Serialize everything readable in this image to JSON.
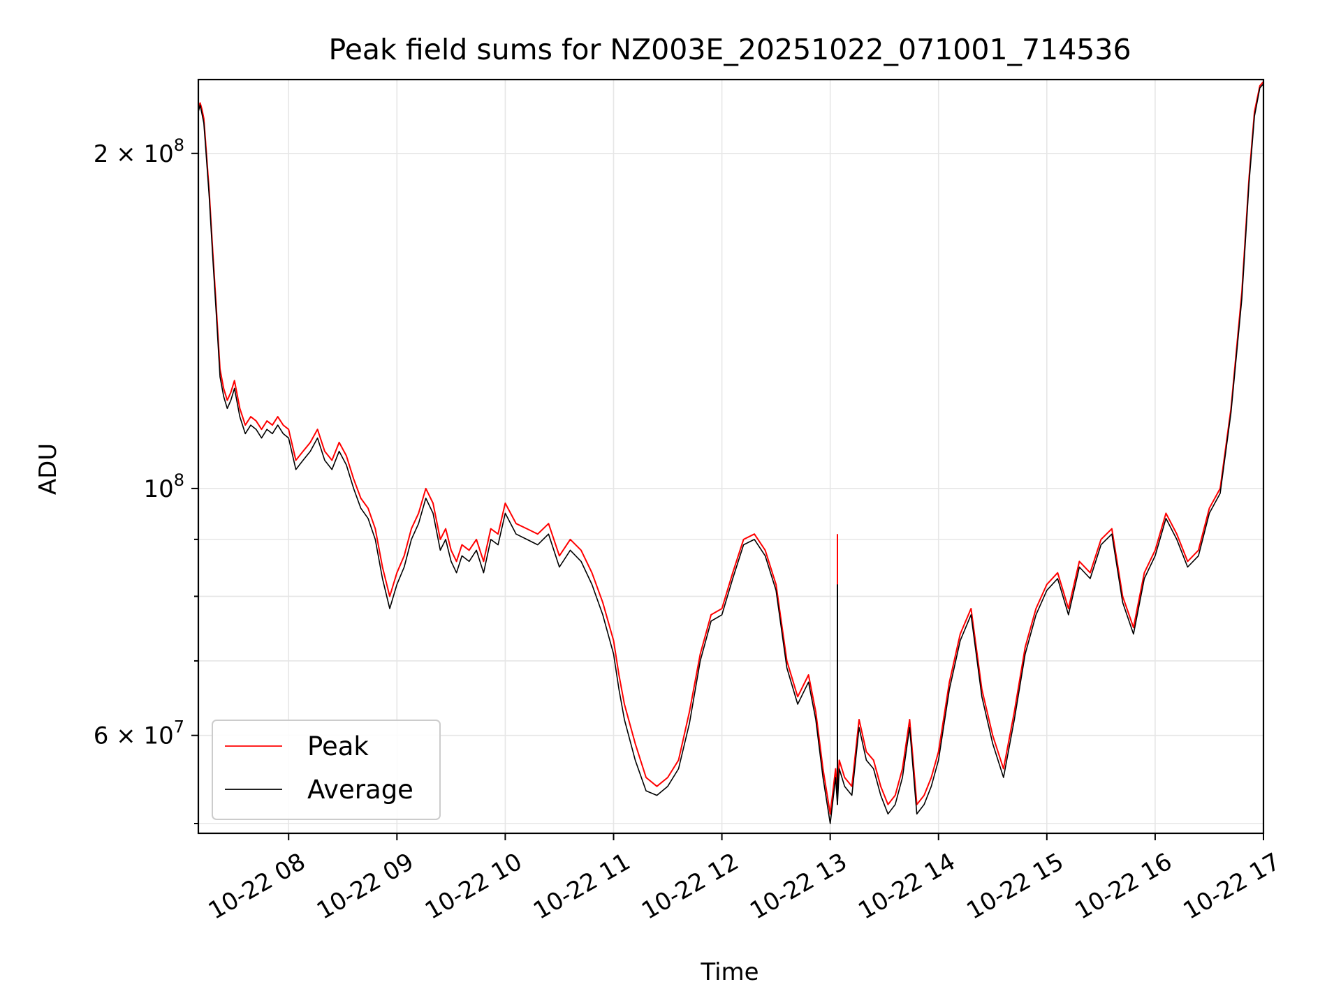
{
  "chart_data": {
    "type": "line",
    "title": "Peak field sums for NZ003E_20251022_071001_714536",
    "xlabel": "Time",
    "ylabel": "ADU",
    "yscale": "log",
    "grid": true,
    "legend_position": "lower-left",
    "xlim": [
      "2025-10-22 07:10",
      "2025-10-22 17:00"
    ],
    "ylim": [
      49000000,
      233000000
    ],
    "x_ticks": [
      {
        "label": "10-22 08",
        "t": "2025-10-22 08:00"
      },
      {
        "label": "10-22 09",
        "t": "2025-10-22 09:00"
      },
      {
        "label": "10-22 10",
        "t": "2025-10-22 10:00"
      },
      {
        "label": "10-22 11",
        "t": "2025-10-22 11:00"
      },
      {
        "label": "10-22 12",
        "t": "2025-10-22 12:00"
      },
      {
        "label": "10-22 13",
        "t": "2025-10-22 13:00"
      },
      {
        "label": "10-22 14",
        "t": "2025-10-22 14:00"
      },
      {
        "label": "10-22 15",
        "t": "2025-10-22 15:00"
      },
      {
        "label": "10-22 16",
        "t": "2025-10-22 16:00"
      },
      {
        "label": "10-22 17",
        "t": "2025-10-22 17:00"
      }
    ],
    "y_major_ticks": [
      {
        "label_base": "6",
        "label_exp": "7",
        "value": 60000000
      },
      {
        "label_base": "",
        "label_exp": "8",
        "value": 100000000
      },
      {
        "label_base": "2",
        "label_exp": "8",
        "value": 200000000
      }
    ],
    "y_minor_ticks": [
      50000000,
      70000000,
      80000000,
      90000000
    ],
    "series": [
      {
        "name": "Peak",
        "color": "#ff0000",
        "x": [
          "07:10",
          "07:11",
          "07:12",
          "07:13",
          "07:14",
          "07:16",
          "07:18",
          "07:20",
          "07:22",
          "07:24",
          "07:26",
          "07:28",
          "07:30",
          "07:33",
          "07:36",
          "07:39",
          "07:42",
          "07:45",
          "07:48",
          "07:51",
          "07:54",
          "07:57",
          "08:00",
          "08:04",
          "08:08",
          "08:12",
          "08:16",
          "08:20",
          "08:24",
          "08:28",
          "08:32",
          "08:36",
          "08:40",
          "08:44",
          "08:48",
          "08:52",
          "08:56",
          "09:00",
          "09:04",
          "09:08",
          "09:12",
          "09:16",
          "09:20",
          "09:24",
          "09:27",
          "09:30",
          "09:33",
          "09:36",
          "09:40",
          "09:44",
          "09:48",
          "09:52",
          "09:56",
          "10:00",
          "10:06",
          "10:12",
          "10:18",
          "10:24",
          "10:30",
          "10:36",
          "10:42",
          "10:48",
          "10:54",
          "11:00",
          "11:03",
          "11:06",
          "11:12",
          "11:18",
          "11:24",
          "11:30",
          "11:36",
          "11:42",
          "11:48",
          "11:54",
          "12:00",
          "12:06",
          "12:12",
          "12:18",
          "12:24",
          "12:30",
          "12:36",
          "12:42",
          "12:48",
          "12:52",
          "12:56",
          "13:00",
          "13:03",
          "13:04",
          "13:05",
          "13:08",
          "13:12",
          "13:16",
          "13:20",
          "13:24",
          "13:28",
          "13:32",
          "13:36",
          "13:40",
          "13:44",
          "13:48",
          "13:52",
          "13:56",
          "14:00",
          "14:06",
          "14:12",
          "14:18",
          "14:24",
          "14:30",
          "14:36",
          "14:42",
          "14:48",
          "14:54",
          "15:00",
          "15:06",
          "15:12",
          "15:18",
          "15:24",
          "15:30",
          "15:36",
          "15:42",
          "15:48",
          "15:54",
          "16:00",
          "16:06",
          "16:12",
          "16:18",
          "16:24",
          "16:30",
          "16:36",
          "16:42",
          "16:48",
          "16:52",
          "16:55",
          "16:58",
          "17:00"
        ],
        "values": [
          220000000,
          222000000,
          219000000,
          215000000,
          205000000,
          185000000,
          163000000,
          145000000,
          128000000,
          123000000,
          120000000,
          122000000,
          125000000,
          118000000,
          114000000,
          116000000,
          115000000,
          113000000,
          115000000,
          114000000,
          116000000,
          114000000,
          113000000,
          106000000,
          108000000,
          110000000,
          113000000,
          108000000,
          106000000,
          110000000,
          107000000,
          102000000,
          98000000,
          96000000,
          92000000,
          85000000,
          80000000,
          84000000,
          87000000,
          92000000,
          95000000,
          100000000,
          97000000,
          90000000,
          92000000,
          88000000,
          86000000,
          89000000,
          88000000,
          90000000,
          86000000,
          92000000,
          91000000,
          97000000,
          93000000,
          92000000,
          91000000,
          93000000,
          87000000,
          90000000,
          88000000,
          84000000,
          79000000,
          73000000,
          68000000,
          64000000,
          59000000,
          55000000,
          54000000,
          55000000,
          57000000,
          63000000,
          71000000,
          77000000,
          78000000,
          84000000,
          90000000,
          91000000,
          88000000,
          82000000,
          70000000,
          65000000,
          68000000,
          63000000,
          56000000,
          51000000,
          56000000,
          53000000,
          57000000,
          55000000,
          54000000,
          62000000,
          58000000,
          57000000,
          54000000,
          52000000,
          53000000,
          56000000,
          62000000,
          52000000,
          53000000,
          55000000,
          58000000,
          67000000,
          74000000,
          78000000,
          66000000,
          60000000,
          56000000,
          63000000,
          72000000,
          78000000,
          82000000,
          84000000,
          78000000,
          86000000,
          84000000,
          90000000,
          92000000,
          80000000,
          75000000,
          84000000,
          88000000,
          95000000,
          91000000,
          86000000,
          88000000,
          96000000,
          100000000,
          118000000,
          150000000,
          190000000,
          218000000,
          230000000,
          232000000
        ],
        "annotations": [
          {
            "x": "13:04",
            "value": 91000000
          }
        ]
      },
      {
        "name": "Average",
        "color": "#000000",
        "x": [
          "07:10",
          "07:11",
          "07:12",
          "07:13",
          "07:14",
          "07:16",
          "07:18",
          "07:20",
          "07:22",
          "07:24",
          "07:26",
          "07:28",
          "07:30",
          "07:33",
          "07:36",
          "07:39",
          "07:42",
          "07:45",
          "07:48",
          "07:51",
          "07:54",
          "07:57",
          "08:00",
          "08:04",
          "08:08",
          "08:12",
          "08:16",
          "08:20",
          "08:24",
          "08:28",
          "08:32",
          "08:36",
          "08:40",
          "08:44",
          "08:48",
          "08:52",
          "08:56",
          "09:00",
          "09:04",
          "09:08",
          "09:12",
          "09:16",
          "09:20",
          "09:24",
          "09:27",
          "09:30",
          "09:33",
          "09:36",
          "09:40",
          "09:44",
          "09:48",
          "09:52",
          "09:56",
          "10:00",
          "10:06",
          "10:12",
          "10:18",
          "10:24",
          "10:30",
          "10:36",
          "10:42",
          "10:48",
          "10:54",
          "11:00",
          "11:03",
          "11:06",
          "11:12",
          "11:18",
          "11:24",
          "11:30",
          "11:36",
          "11:42",
          "11:48",
          "11:54",
          "12:00",
          "12:06",
          "12:12",
          "12:18",
          "12:24",
          "12:30",
          "12:36",
          "12:42",
          "12:48",
          "12:52",
          "12:56",
          "13:00",
          "13:03",
          "13:04",
          "13:05",
          "13:08",
          "13:12",
          "13:16",
          "13:20",
          "13:24",
          "13:28",
          "13:32",
          "13:36",
          "13:40",
          "13:44",
          "13:48",
          "13:52",
          "13:56",
          "14:00",
          "14:06",
          "14:12",
          "14:18",
          "14:24",
          "14:30",
          "14:36",
          "14:42",
          "14:48",
          "14:54",
          "15:00",
          "15:06",
          "15:12",
          "15:18",
          "15:24",
          "15:30",
          "15:36",
          "15:42",
          "15:48",
          "15:54",
          "16:00",
          "16:06",
          "16:12",
          "16:18",
          "16:24",
          "16:30",
          "16:36",
          "16:42",
          "16:48",
          "16:52",
          "16:55",
          "16:58",
          "17:00"
        ],
        "values": [
          218000000,
          221000000,
          217000000,
          213000000,
          203000000,
          183000000,
          161000000,
          143000000,
          126000000,
          121000000,
          118000000,
          120000000,
          123000000,
          116000000,
          112000000,
          114000000,
          113000000,
          111000000,
          113000000,
          112000000,
          114000000,
          112000000,
          111000000,
          104000000,
          106000000,
          108000000,
          111000000,
          106000000,
          104000000,
          108000000,
          105000000,
          100000000,
          96000000,
          94000000,
          90000000,
          83000000,
          78000000,
          82000000,
          85000000,
          90000000,
          93000000,
          98000000,
          95000000,
          88000000,
          90000000,
          86000000,
          84000000,
          87000000,
          86000000,
          88000000,
          84000000,
          90000000,
          89000000,
          95000000,
          91000000,
          90000000,
          89000000,
          91000000,
          85000000,
          88000000,
          86000000,
          82000000,
          77000000,
          71000000,
          66000000,
          62000000,
          57000000,
          53500000,
          53000000,
          54000000,
          56000000,
          61500000,
          70000000,
          76000000,
          77000000,
          83000000,
          89000000,
          90000000,
          87000000,
          81000000,
          69000000,
          64000000,
          67000000,
          62000000,
          55000000,
          50000000,
          55000000,
          52000000,
          56000000,
          54000000,
          53000000,
          61000000,
          57000000,
          56000000,
          53000000,
          51000000,
          52000000,
          55000000,
          61000000,
          51000000,
          52000000,
          54000000,
          57000000,
          66000000,
          73000000,
          77000000,
          65000000,
          59000000,
          55000000,
          62000000,
          71000000,
          77000000,
          81000000,
          83000000,
          77000000,
          85000000,
          83000000,
          89000000,
          91000000,
          79000000,
          74000000,
          83000000,
          87000000,
          94000000,
          90000000,
          85000000,
          87000000,
          95000000,
          99000000,
          117000000,
          148000000,
          188000000,
          216000000,
          229000000,
          231000000
        ],
        "annotations": [
          {
            "x": "13:04",
            "value": 82000000
          }
        ]
      }
    ]
  }
}
